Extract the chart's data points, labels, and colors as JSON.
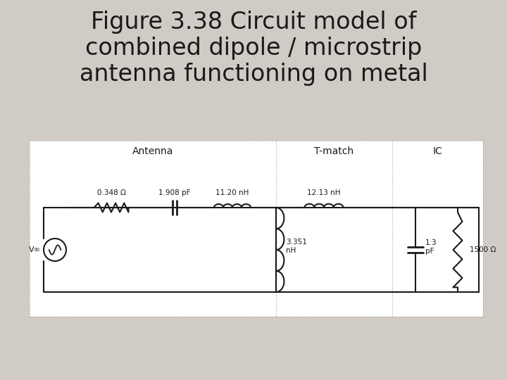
{
  "title_line1": "Figure 3.38 Circuit model of",
  "title_line2": "combined dipole / microstrip",
  "title_line3": "antenna functioning on metal",
  "title_fontsize": 24,
  "title_color": "#1a1a1a",
  "bg_color": "#d0cbc4",
  "circuit_bg": "#ffffff",
  "line_color": "#1a1a1a",
  "label_antenna": "Antenna",
  "label_tmatch": "T-match",
  "label_ic": "IC",
  "label_r1": "0.348 Ω",
  "label_c1": "1.908 pF",
  "label_l1": "11.20 nH",
  "label_l2": "12.13 nH",
  "label_l3": "3.351\nnH",
  "label_c2": "1.3\npF",
  "label_r2": "1500 Ω",
  "label_voc": "V∞"
}
